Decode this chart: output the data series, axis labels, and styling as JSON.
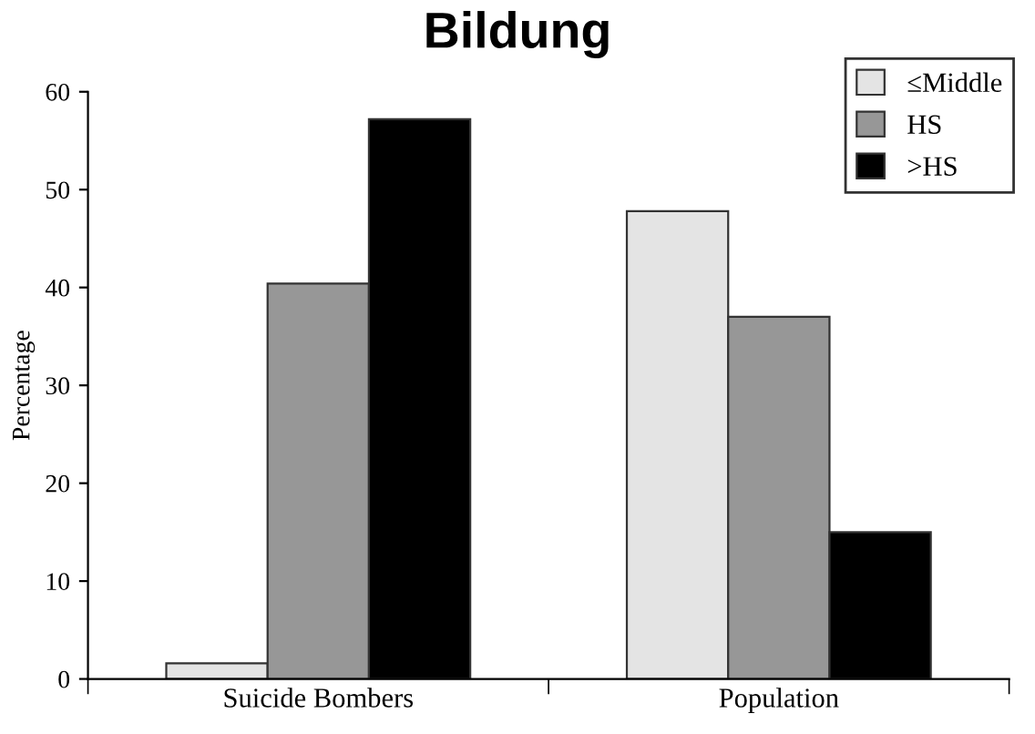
{
  "chart_data": {
    "type": "bar",
    "title": "Bildung",
    "ylabel": "Percentage",
    "categories": [
      "Suicide Bombers",
      "Population"
    ],
    "series": [
      {
        "name": "≤Middle",
        "color": "#e4e4e4",
        "values": [
          1.6,
          47.8
        ]
      },
      {
        "name": "HS",
        "color": "#979797",
        "values": [
          40.4,
          37.0
        ]
      },
      {
        "name": ">HS",
        "color": "#000000",
        "values": [
          57.2,
          15.0
        ]
      }
    ],
    "ylim": [
      0,
      60
    ],
    "yticks": [
      0,
      10,
      20,
      30,
      40,
      50,
      60
    ],
    "grid": false,
    "legend": "top right"
  }
}
